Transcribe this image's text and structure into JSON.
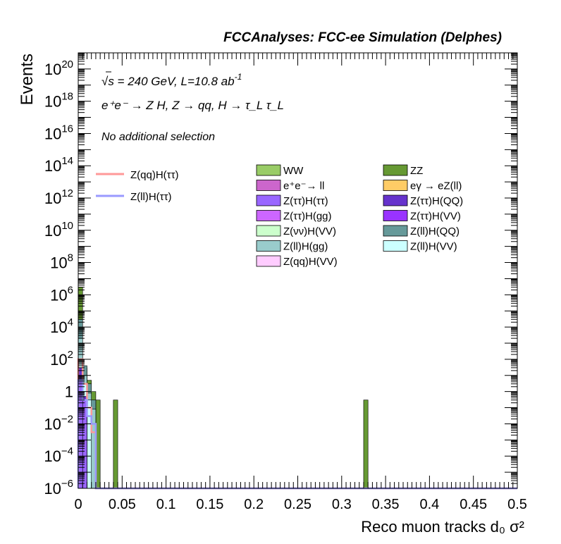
{
  "header": {
    "experiment_label": "FCCAnalyses: FCC-ee Simulation (Delphes)"
  },
  "labels": {
    "sqrt_s": "√s = 240 GeV, L=10.8 ab",
    "sqrt_s_exp": "-1",
    "process": "e⁺e⁻ → Z H, Z → qq, H → τ_L τ_L",
    "selection": "No additional selection"
  },
  "colors": {
    "signal_qq": "#ff9999",
    "signal_ll": "#9999ff"
  },
  "legend": {
    "signals": [
      {
        "name": "Z(qq)H(ττ)",
        "color": "#ff9999"
      },
      {
        "name": "Z(ll)H(ττ)",
        "color": "#9999ff"
      }
    ],
    "backgrounds": [
      {
        "name": "WW",
        "color": "#99cc66"
      },
      {
        "name": "ZZ",
        "color": "#669933"
      },
      {
        "name": "e⁺e⁻→ ll",
        "color": "#cc66cc"
      },
      {
        "name": "eγ → eZ(ll)",
        "color": "#ffcc66"
      },
      {
        "name": "Z(ττ)H(ττ)",
        "color": "#9966ff"
      },
      {
        "name": "Z(ττ)H(QQ)",
        "color": "#6633cc"
      },
      {
        "name": "Z(ττ)H(gg)",
        "color": "#cc66ff"
      },
      {
        "name": "Z(ττ)H(VV)",
        "color": "#9933ff"
      },
      {
        "name": "Z(νν)H(VV)",
        "color": "#ccffcc"
      },
      {
        "name": "Z(ll)H(QQ)",
        "color": "#669999"
      },
      {
        "name": "Z(ll)H(gg)",
        "color": "#99cccc"
      },
      {
        "name": "Z(ll)H(VV)",
        "color": "#ccffff"
      },
      {
        "name": "Z(qq)H(VV)",
        "color": "#ffccff"
      }
    ]
  },
  "chart_data": {
    "type": "bar",
    "xlabel": "Reco muon tracks d₀ σ²",
    "ylabel": "Events",
    "xlim": [
      0,
      0.5
    ],
    "ylim": [
      1e-06,
      1e+21
    ],
    "yscale": "log",
    "bin_width": 0.005,
    "x_ticks": [
      "0",
      "0.05",
      "0.1",
      "0.15",
      "0.2",
      "0.25",
      "0.3",
      "0.35",
      "0.4",
      "0.45",
      "0.5"
    ],
    "y_ticks": [
      {
        "base": "10",
        "exp": "−6",
        "value": 1e-06
      },
      {
        "base": "10",
        "exp": "−4",
        "value": 0.0001
      },
      {
        "base": "10",
        "exp": "−2",
        "value": 0.01
      },
      {
        "base": "1",
        "exp": "",
        "value": 1
      },
      {
        "base": "10",
        "exp": "2",
        "value": 100.0
      },
      {
        "base": "10",
        "exp": "4",
        "value": 10000.0
      },
      {
        "base": "10",
        "exp": "6",
        "value": 1000000.0
      },
      {
        "base": "10",
        "exp": "8",
        "value": 100000000.0
      },
      {
        "base": "10",
        "exp": "10",
        "value": 10000000000.0
      },
      {
        "base": "10",
        "exp": "12",
        "value": 1000000000000.0
      },
      {
        "base": "10",
        "exp": "14",
        "value": 100000000000000.0
      },
      {
        "base": "10",
        "exp": "16",
        "value": 1e+16
      },
      {
        "base": "10",
        "exp": "18",
        "value": 1e+18
      },
      {
        "base": "10",
        "exp": "20",
        "value": 1e+20
      }
    ],
    "stack_layers": [
      {
        "series": "ZZ",
        "color": "#669933",
        "bins": [
          {
            "x": 0.0,
            "y": 3000000
          },
          {
            "x": 0.005,
            "y": 30
          },
          {
            "x": 0.01,
            "y": 5
          },
          {
            "x": 0.015,
            "y": 1
          },
          {
            "x": 0.02,
            "y": 0.3
          },
          {
            "x": 0.04,
            "y": 0.3
          },
          {
            "x": 0.325,
            "y": 0.3
          }
        ]
      },
      {
        "series": "Z(ll)H(QQ)",
        "color": "#669999",
        "bins": [
          {
            "x": 0.0,
            "y": 30000
          },
          {
            "x": 0.005,
            "y": 40
          },
          {
            "x": 0.01,
            "y": 3
          },
          {
            "x": 0.015,
            "y": 0.3
          }
        ]
      },
      {
        "series": "Z(ll)H(gg)",
        "color": "#99cccc",
        "bins": [
          {
            "x": 0.0,
            "y": 2000
          },
          {
            "x": 0.005,
            "y": 10
          },
          {
            "x": 0.01,
            "y": 0.8
          },
          {
            "x": 0.015,
            "y": 0.08
          }
        ]
      },
      {
        "series": "Z(ll)H(VV)",
        "color": "#ccffff",
        "bins": [
          {
            "x": 0.0,
            "y": 80
          },
          {
            "x": 0.005,
            "y": 3
          },
          {
            "x": 0.01,
            "y": 0.3
          }
        ]
      },
      {
        "series": "Z(ττ)H(QQ)",
        "color": "#6633cc",
        "bins": [
          {
            "x": 0.0,
            "y": 30
          },
          {
            "x": 0.005,
            "y": 0.5
          }
        ]
      },
      {
        "series": "Z(ττ)H(ττ)",
        "color": "#9966ff",
        "bins": [
          {
            "x": 0.0,
            "y": 5
          },
          {
            "x": 0.005,
            "y": 0.3
          }
        ]
      }
    ],
    "signal_lines": [
      {
        "series": "Z(qq)H(ττ)",
        "color": "#ff9999",
        "bins": [
          {
            "x": 0.0,
            "y": 100
          },
          {
            "x": 0.005,
            "y": 3
          },
          {
            "x": 0.01,
            "y": 0.1
          },
          {
            "x": 0.015,
            "y": 0.003
          }
        ]
      },
      {
        "series": "Z(ll)H(ττ)",
        "color": "#9999ff",
        "bins": [
          {
            "x": 0.0,
            "y": 5
          },
          {
            "x": 0.005,
            "y": 0.3
          },
          {
            "x": 0.01,
            "y": 0.03
          },
          {
            "x": 0.015,
            "y": 0.01
          }
        ]
      }
    ]
  }
}
